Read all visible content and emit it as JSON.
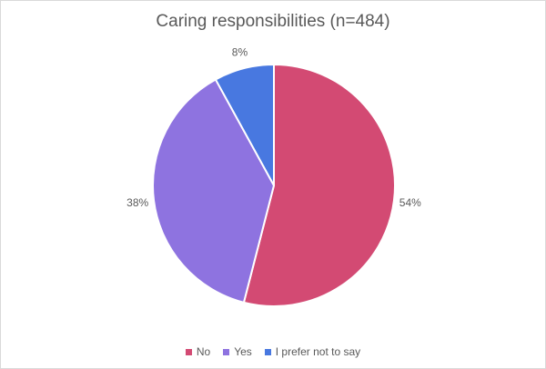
{
  "chart_data": {
    "type": "pie",
    "title": "Caring responsibilities (n=484)",
    "categories": [
      "No",
      "Yes",
      "I prefer not to say"
    ],
    "values": [
      54,
      38,
      8
    ],
    "labels": [
      "54%",
      "38%",
      "8%"
    ],
    "colors": [
      "#d34a73",
      "#8e73e0",
      "#4878e0"
    ],
    "start_angle_deg": 0,
    "direction": "clockwise",
    "legend_position": "bottom"
  }
}
